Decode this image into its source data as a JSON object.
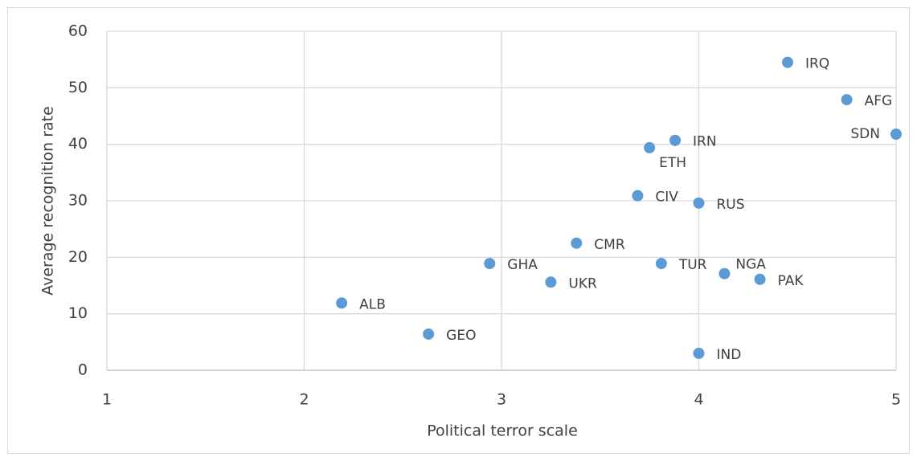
{
  "chart_data": {
    "type": "scatter",
    "x_label": "Political terror scale",
    "y_label": "Average recognition rate",
    "color": "#5b9bd5",
    "grid": true,
    "xlim": [
      1,
      5
    ],
    "xticks": [
      1,
      2,
      3,
      4,
      5
    ],
    "ylim": [
      0,
      60
    ],
    "yticks": [
      0,
      10,
      20,
      30,
      40,
      50,
      60
    ],
    "labels": [
      "IRQ",
      "AFG",
      "SDN",
      "IRN",
      "ETH",
      "CIV",
      "RUS",
      "CMR",
      "GHA",
      "TUR",
      "NGA",
      "PAK",
      "UKR",
      "ALB",
      "GEO",
      "IND"
    ],
    "x": [
      4.45,
      4.75,
      5.0,
      3.88,
      3.75,
      3.69,
      4.0,
      3.38,
      2.94,
      3.81,
      4.13,
      4.31,
      3.25,
      2.19,
      2.63,
      4.0
    ],
    "y": [
      54.5,
      47.9,
      41.8,
      40.7,
      39.4,
      30.9,
      29.6,
      22.5,
      18.9,
      18.9,
      17.1,
      16.1,
      15.6,
      11.9,
      6.4,
      3.0
    ]
  }
}
